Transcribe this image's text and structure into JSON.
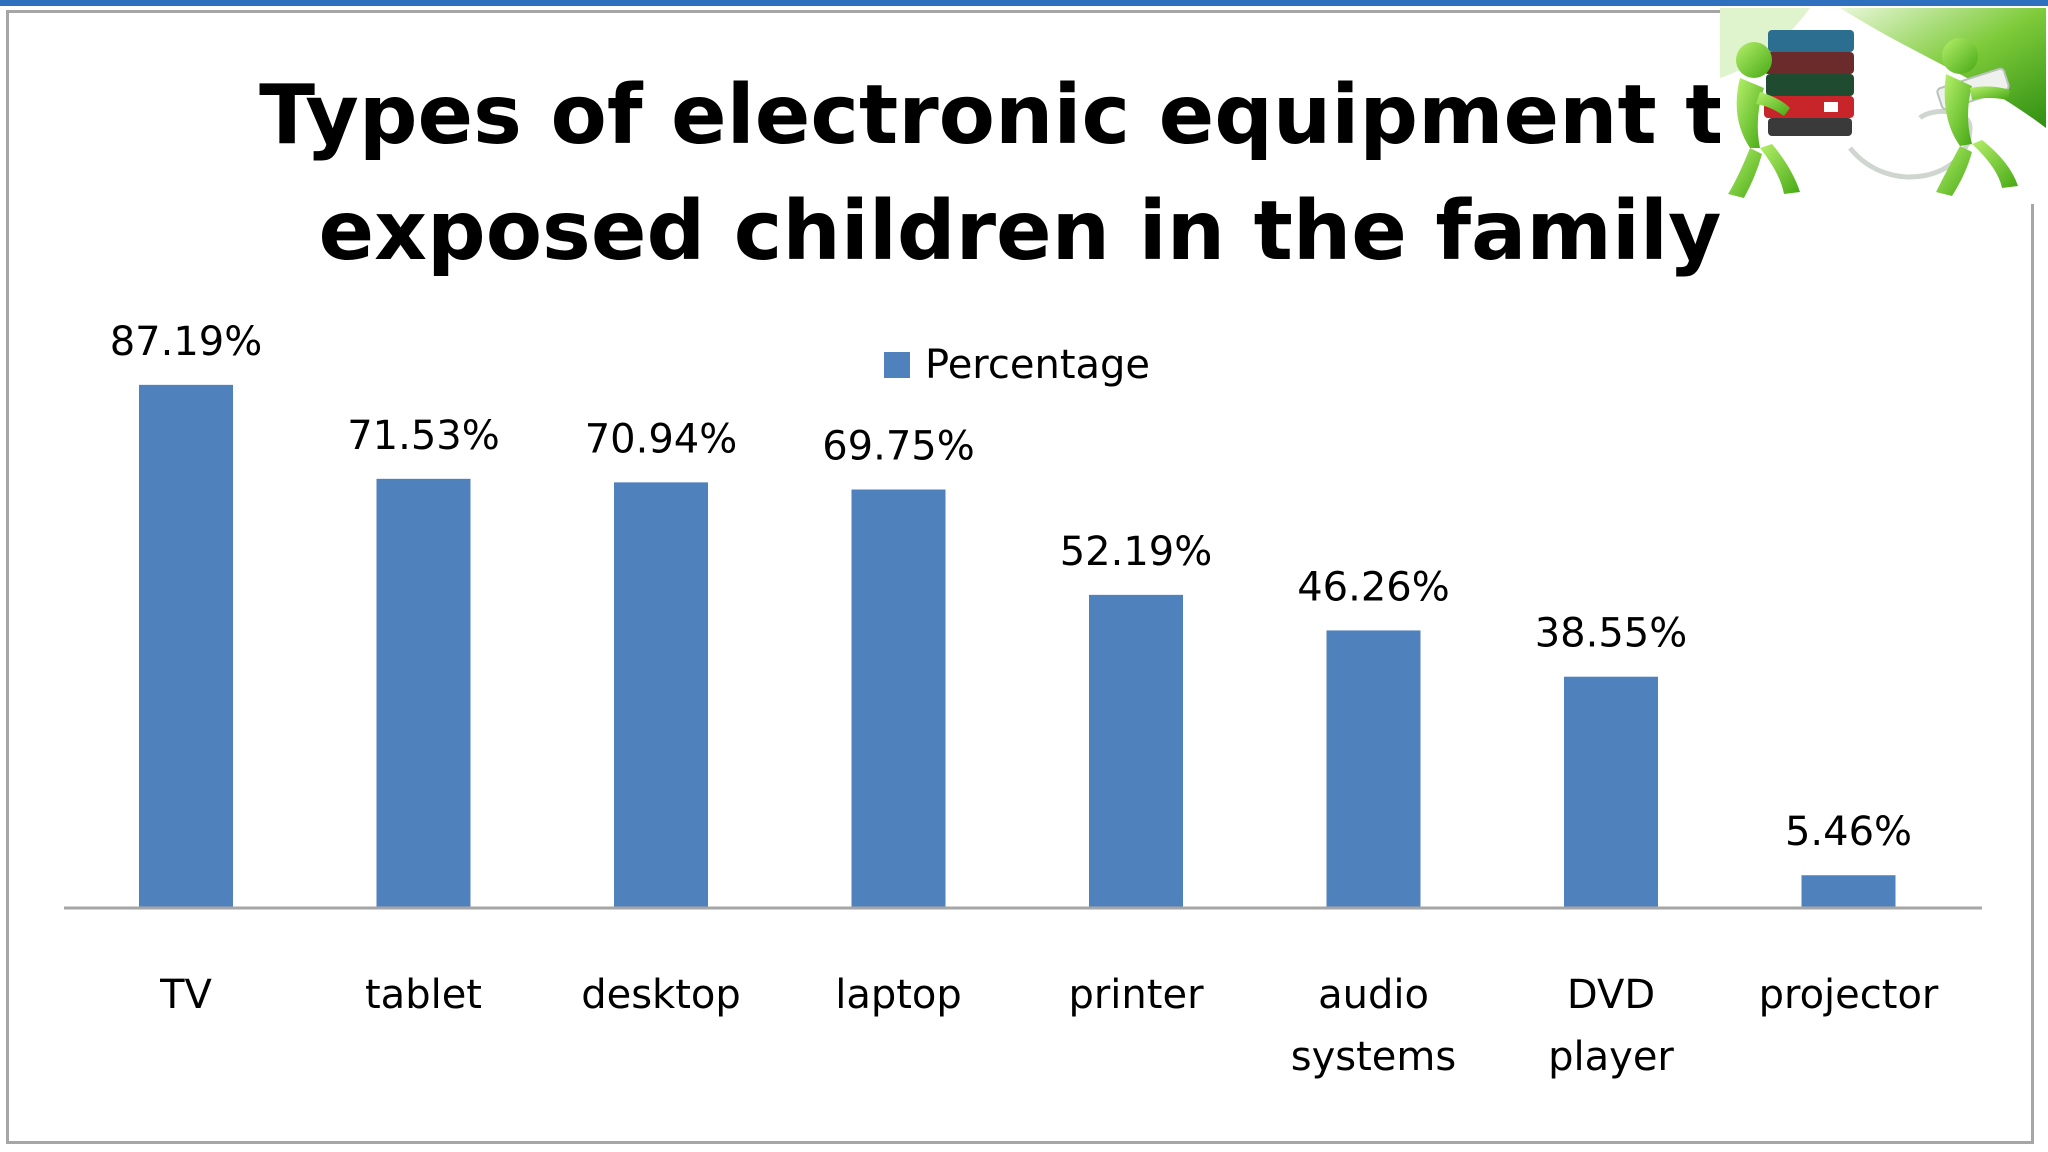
{
  "chart_data": {
    "type": "bar",
    "title": "Types of electronic equipment to exposed children in the family",
    "categories": [
      "TV",
      "tablet",
      "desktop",
      "laptop",
      "printer",
      "audio systems",
      "DVD player",
      "projector"
    ],
    "category_lines": [
      [
        "TV"
      ],
      [
        "tablet"
      ],
      [
        "desktop"
      ],
      [
        "laptop"
      ],
      [
        "printer"
      ],
      [
        "audio",
        "systems"
      ],
      [
        "DVD",
        "player"
      ],
      [
        "projector"
      ]
    ],
    "series": [
      {
        "name": "Percentage",
        "values": [
          87.19,
          71.53,
          70.94,
          69.75,
          52.19,
          46.26,
          38.55,
          5.46
        ],
        "labels": [
          "87.19%",
          "71.53%",
          "70.94%",
          "69.75%",
          "52.19%",
          "46.26%",
          "38.55%",
          "5.46%"
        ]
      }
    ],
    "ylim": [
      0,
      100
    ],
    "grid": false,
    "legend_position": "top",
    "bar_color": "#4f81bd"
  },
  "theme": {
    "accent": "#2e6fbe",
    "frame": "#a6a6a6",
    "axis": "#a6a6a6"
  },
  "decoration": {
    "icon": "people-carrying-books-and-usb-icon"
  }
}
